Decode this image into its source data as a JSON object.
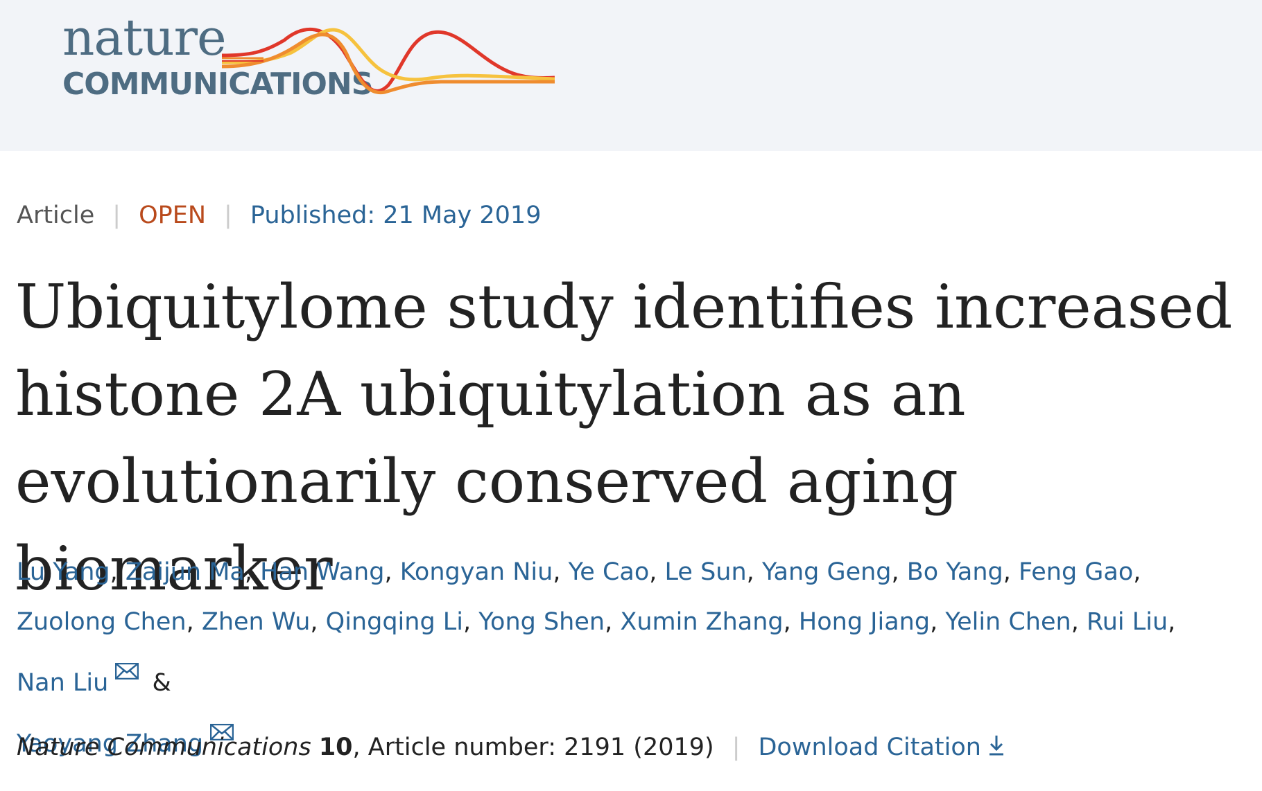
{
  "logo": {
    "line1": "nature",
    "line2": "COMMUNICATIONS",
    "colors": {
      "text": "#4e6c82",
      "swoosh_red": "#e0372a",
      "swoosh_orange": "#ef8c2f",
      "swoosh_yellow": "#f6c23e"
    }
  },
  "meta": {
    "type": "Article",
    "access": "OPEN",
    "published": "Published: 21 May 2019"
  },
  "title": "Ubiquitylome study identifies increased histone 2A ubiquitylation as an evolutionarily conserved aging biomarker",
  "authors": [
    {
      "name": "Lu Yang"
    },
    {
      "name": "Zaijun Ma"
    },
    {
      "name": "Han Wang"
    },
    {
      "name": "Kongyan Niu"
    },
    {
      "name": "Ye Cao"
    },
    {
      "name": "Le Sun"
    },
    {
      "name": "Yang Geng"
    },
    {
      "name": "Bo Yang"
    },
    {
      "name": "Feng Gao"
    },
    {
      "name": "Zuolong Chen"
    },
    {
      "name": "Zhen Wu"
    },
    {
      "name": "Qingqing Li"
    },
    {
      "name": "Yong Shen"
    },
    {
      "name": "Xumin Zhang"
    },
    {
      "name": "Hong Jiang"
    },
    {
      "name": "Yelin Chen"
    },
    {
      "name": "Rui Liu"
    },
    {
      "name": "Nan Liu",
      "icon": "mail-icon"
    },
    {
      "name": "Yaoyang Zhang",
      "icon": "mail-icon"
    }
  ],
  "authors_ampersand": "&",
  "citation": {
    "journal": "Nature Communications",
    "volume": "10",
    "article_number": ", Article number: 2191 (2019)",
    "download_label": "Download Citation",
    "download_icon": "download-arrow-icon"
  },
  "colors": {
    "link": "#2a6496",
    "open": "#b94a1c",
    "header_bg": "#f2f4f8"
  }
}
